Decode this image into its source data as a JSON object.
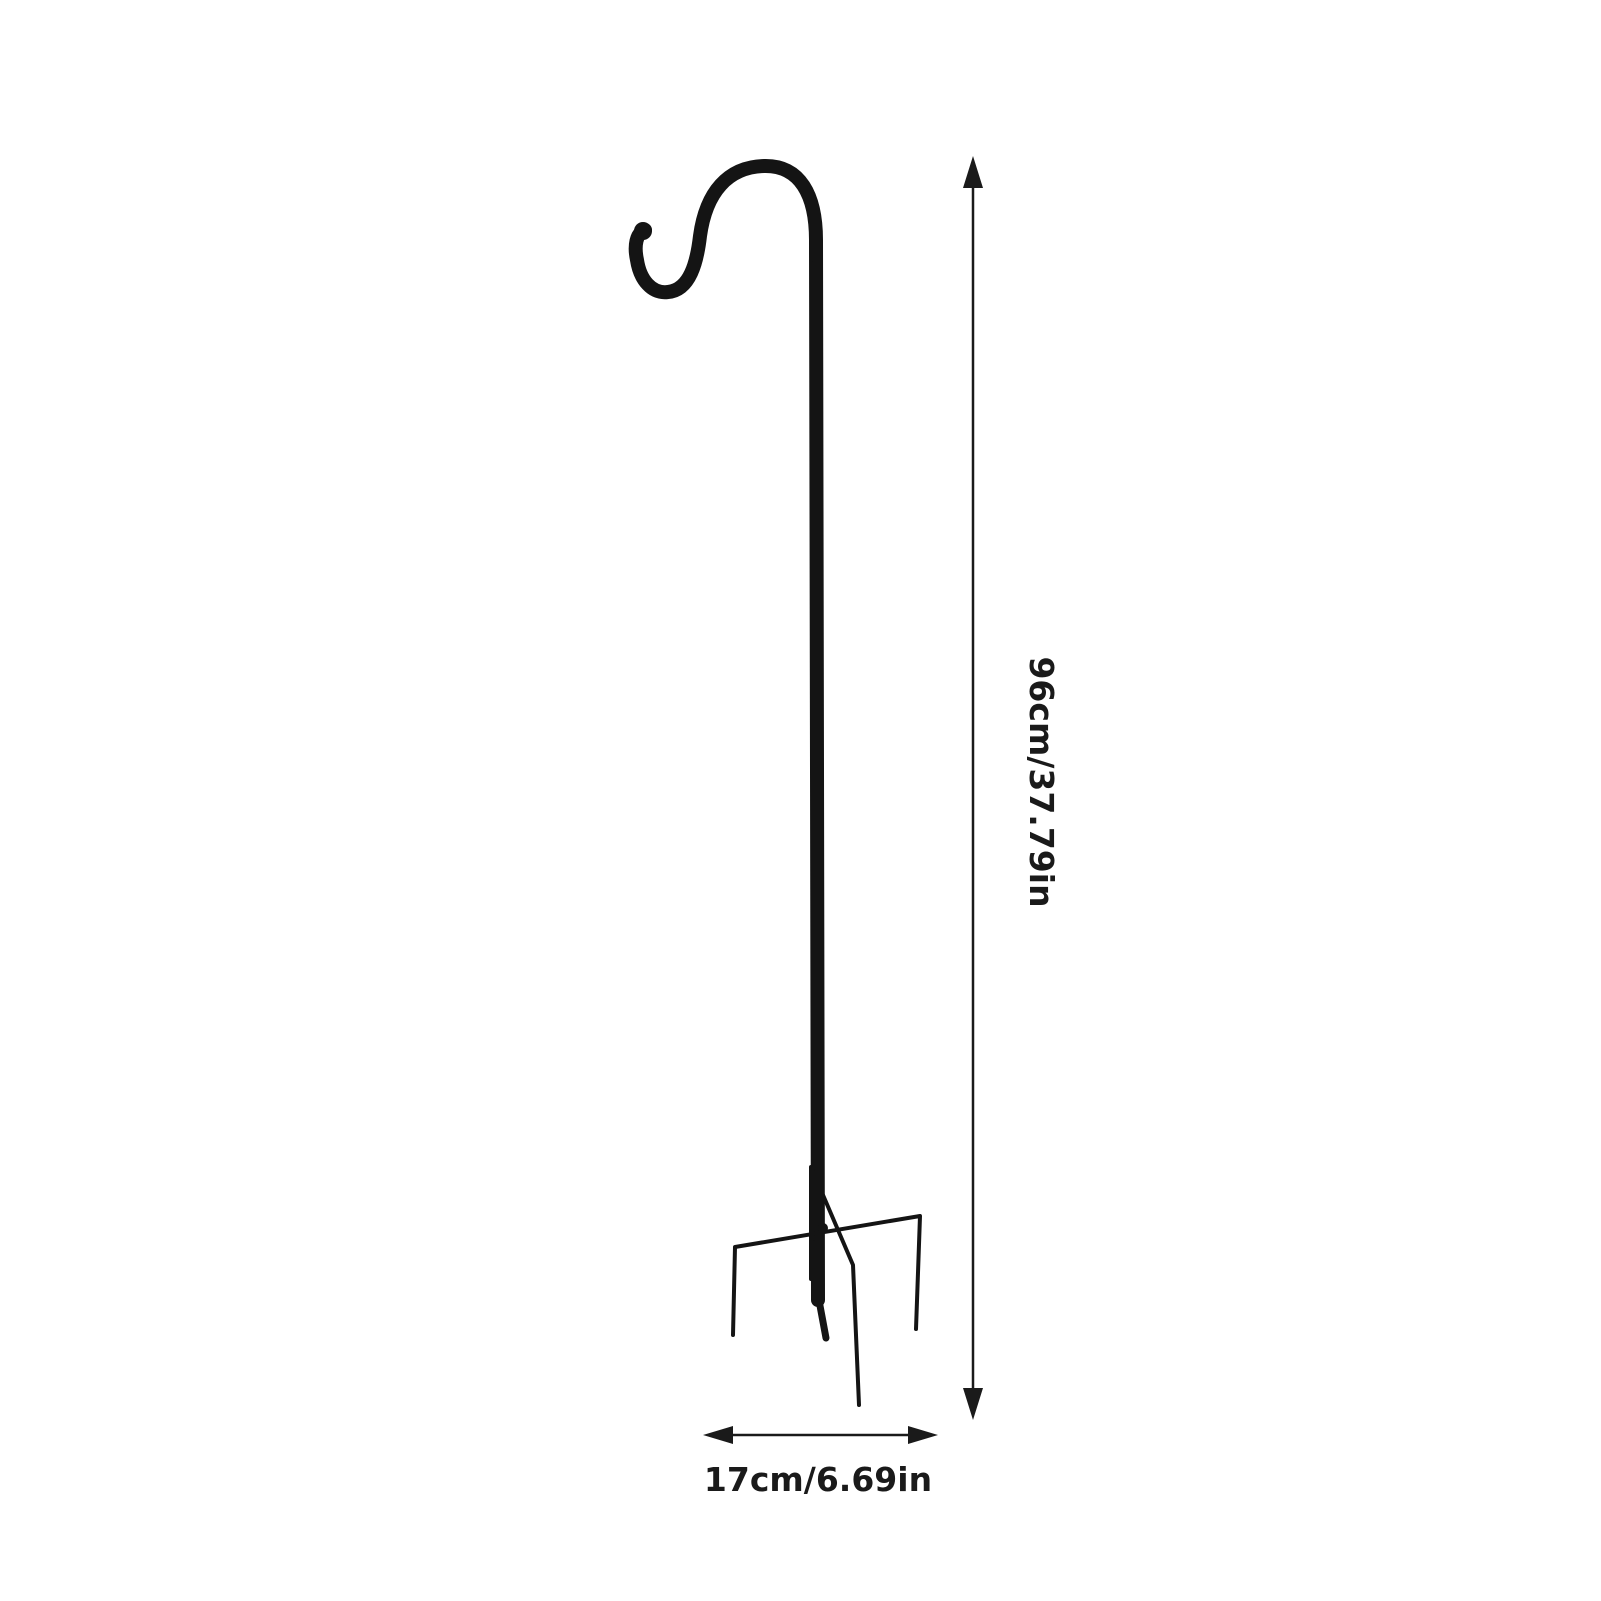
{
  "diagram": {
    "subject": "shepherd hook with four-prong ground stake",
    "height_label": "96cm/37.79in",
    "width_label": "17cm/6.69in",
    "colors": {
      "background": "#ffffff",
      "hook": "#141414",
      "dimension_lines": "#1a1a1a"
    }
  }
}
